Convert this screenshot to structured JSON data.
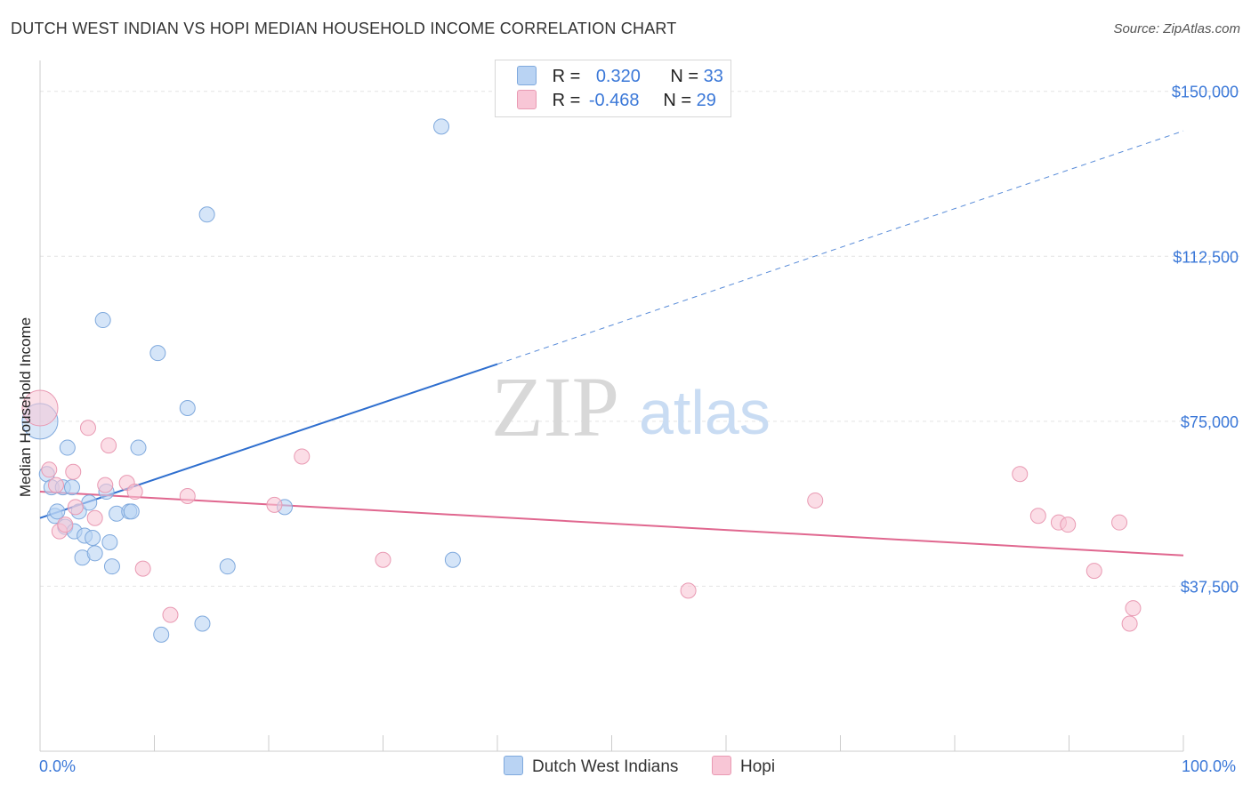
{
  "header": {
    "title": "DUTCH WEST INDIAN VS HOPI MEDIAN HOUSEHOLD INCOME CORRELATION CHART",
    "source": "Source: ZipAtlas.com"
  },
  "watermark": {
    "zip": "ZIP",
    "atlas": "atlas"
  },
  "legend": {
    "rows": [
      {
        "r_label": "R =",
        "r_value": "0.320",
        "n_label": "N =",
        "n_value": "33"
      },
      {
        "r_label": "R =",
        "r_value": "-0.468",
        "n_label": "N =",
        "n_value": "29"
      }
    ]
  },
  "colors": {
    "blue_fill": "#b9d3f3",
    "blue_stroke": "#7fa9dd",
    "blue_line": "#2f6fcf",
    "pink_fill": "#f8c6d6",
    "pink_stroke": "#e99ab3",
    "pink_line": "#e0678f",
    "axis_text": "#3b78d8"
  },
  "chart_data": {
    "type": "scatter",
    "title": "DUTCH WEST INDIAN VS HOPI MEDIAN HOUSEHOLD INCOME CORRELATION CHART",
    "xlabel": "",
    "ylabel": "Median Household Income",
    "xlim": [
      0,
      100
    ],
    "ylim": [
      0,
      155000
    ],
    "x_tick_labels": [
      "0.0%",
      "100.0%"
    ],
    "y_ticks": [
      37500,
      75000,
      112500,
      150000
    ],
    "y_tick_labels": [
      "$37,500",
      "$75,000",
      "$112,500",
      "$150,000"
    ],
    "series": [
      {
        "name": "Dutch West Indians",
        "color": "blue",
        "trend": {
          "x0": 0,
          "y0": 53000,
          "x1": 40,
          "y1": 88000,
          "x_ext": 100,
          "y_ext": 141000
        },
        "points": [
          {
            "x": 0,
            "y": 75000,
            "big": true
          },
          {
            "x": 0.6,
            "y": 63000
          },
          {
            "x": 1.0,
            "y": 60000
          },
          {
            "x": 1.3,
            "y": 53500
          },
          {
            "x": 1.5,
            "y": 54500
          },
          {
            "x": 2.0,
            "y": 60000
          },
          {
            "x": 2.2,
            "y": 51000
          },
          {
            "x": 2.4,
            "y": 69000
          },
          {
            "x": 2.8,
            "y": 60000
          },
          {
            "x": 3.0,
            "y": 50000
          },
          {
            "x": 3.4,
            "y": 54500
          },
          {
            "x": 3.7,
            "y": 44000
          },
          {
            "x": 3.9,
            "y": 49000
          },
          {
            "x": 4.3,
            "y": 56500
          },
          {
            "x": 4.6,
            "y": 48500
          },
          {
            "x": 4.8,
            "y": 45000
          },
          {
            "x": 5.5,
            "y": 98000
          },
          {
            "x": 5.8,
            "y": 59000
          },
          {
            "x": 6.1,
            "y": 47500
          },
          {
            "x": 6.3,
            "y": 42000
          },
          {
            "x": 6.7,
            "y": 54000
          },
          {
            "x": 7.8,
            "y": 54500
          },
          {
            "x": 8.0,
            "y": 54500
          },
          {
            "x": 8.6,
            "y": 69000
          },
          {
            "x": 10.3,
            "y": 90500
          },
          {
            "x": 10.6,
            "y": 26500
          },
          {
            "x": 12.9,
            "y": 78000
          },
          {
            "x": 14.6,
            "y": 122000
          },
          {
            "x": 14.2,
            "y": 29000
          },
          {
            "x": 16.4,
            "y": 42000
          },
          {
            "x": 21.4,
            "y": 55500
          },
          {
            "x": 35.1,
            "y": 142000
          },
          {
            "x": 36.1,
            "y": 43500
          }
        ]
      },
      {
        "name": "Hopi",
        "color": "pink",
        "trend": {
          "x0": 0,
          "y0": 59000,
          "x1": 100,
          "y1": 44500
        },
        "points": [
          {
            "x": 0,
            "y": 78000,
            "big": true
          },
          {
            "x": 0.8,
            "y": 64000
          },
          {
            "x": 1.4,
            "y": 60500
          },
          {
            "x": 1.7,
            "y": 50000
          },
          {
            "x": 2.2,
            "y": 51500
          },
          {
            "x": 2.9,
            "y": 63500
          },
          {
            "x": 3.1,
            "y": 55500
          },
          {
            "x": 4.2,
            "y": 73500
          },
          {
            "x": 4.8,
            "y": 53000
          },
          {
            "x": 5.7,
            "y": 60500
          },
          {
            "x": 6.0,
            "y": 69500
          },
          {
            "x": 7.6,
            "y": 61000
          },
          {
            "x": 8.3,
            "y": 59000
          },
          {
            "x": 9.0,
            "y": 41500
          },
          {
            "x": 11.4,
            "y": 31000
          },
          {
            "x": 12.9,
            "y": 58000
          },
          {
            "x": 20.5,
            "y": 56000
          },
          {
            "x": 22.9,
            "y": 67000
          },
          {
            "x": 30.0,
            "y": 43500
          },
          {
            "x": 56.7,
            "y": 36500
          },
          {
            "x": 67.8,
            "y": 57000
          },
          {
            "x": 85.7,
            "y": 63000
          },
          {
            "x": 87.3,
            "y": 53500
          },
          {
            "x": 89.1,
            "y": 52000
          },
          {
            "x": 89.9,
            "y": 51500
          },
          {
            "x": 92.2,
            "y": 41000
          },
          {
            "x": 94.4,
            "y": 52000
          },
          {
            "x": 95.3,
            "y": 29000
          },
          {
            "x": 95.6,
            "y": 32500
          }
        ]
      }
    ],
    "legend_entries": [
      "Dutch West Indians",
      "Hopi"
    ]
  }
}
